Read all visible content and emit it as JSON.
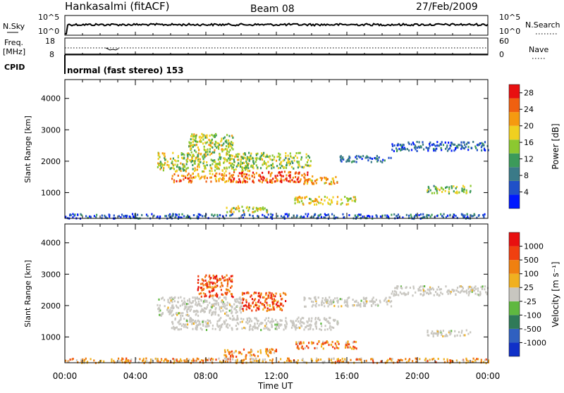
{
  "header": {
    "station": "Hankasalmi (fitACF)",
    "beam": "Beam 08",
    "date": "27/Feb/2009"
  },
  "strip": {
    "nsky_label": "N.Sky",
    "nsky_ticks": [
      "10^5",
      "10^0"
    ],
    "nsearch_ticks": [
      "10^5",
      "10^0"
    ],
    "nsearch_label": "N.Search",
    "freq_label": [
      "Freq.",
      "[MHz]"
    ],
    "freq_ticks": [
      "18",
      "8"
    ],
    "nave_ticks": [
      "60",
      "0"
    ],
    "nave_label": "Nave",
    "cpid_label": "CPID",
    "cpid_text": "normal (fast stereo) 153"
  },
  "time_axis": {
    "title": "Time UT",
    "ticks": [
      "00:00",
      "04:00",
      "08:00",
      "12:00",
      "16:00",
      "20:00",
      "00:00"
    ]
  },
  "colors": {
    "power": [
      "#0018ff",
      "#2050c8",
      "#3a7a88",
      "#3c9a5a",
      "#8cc830",
      "#f0d020",
      "#f59a10",
      "#f06010",
      "#e81010"
    ],
    "velocity": [
      "#1030c8",
      "#3060c0",
      "#2f7a58",
      "#5fb840",
      "#c8c6c0",
      "#f0b020",
      "#f08010",
      "#f04010",
      "#e81010"
    ]
  },
  "chart_data": [
    {
      "type": "heatmap",
      "panel": "power",
      "ylabel": "Slant Range [km]",
      "y_ticks": [
        "1000",
        "2000",
        "3000",
        "4000"
      ],
      "ylim": [
        180,
        4600
      ],
      "xlim_hours": [
        0,
        24
      ],
      "colorbar": {
        "label": "Power [dB]",
        "ticks": [
          "4",
          "8",
          "12",
          "16",
          "20",
          "24",
          "28"
        ],
        "range": [
          0,
          30
        ]
      },
      "regions": [
        {
          "t0": 5.2,
          "t1": 10.5,
          "r0": 1700,
          "r1": 2300,
          "level": 0.55
        },
        {
          "t0": 6.0,
          "t1": 9.5,
          "r0": 1350,
          "r1": 1650,
          "level": 0.75
        },
        {
          "t0": 9.5,
          "t1": 13.8,
          "r0": 1350,
          "r1": 1700,
          "level": 0.85
        },
        {
          "t0": 13.5,
          "t1": 15.5,
          "r0": 1300,
          "r1": 1550,
          "level": 0.7
        },
        {
          "t0": 7.0,
          "t1": 9.5,
          "r0": 2300,
          "r1": 2900,
          "level": 0.55
        },
        {
          "t0": 10.0,
          "t1": 14.0,
          "r0": 1800,
          "r1": 2300,
          "level": 0.5
        },
        {
          "t0": 15.5,
          "t1": 18.5,
          "r0": 2000,
          "r1": 2200,
          "level": 0.25
        },
        {
          "t0": 18.5,
          "t1": 24.0,
          "r0": 2350,
          "r1": 2650,
          "level": 0.2
        },
        {
          "t0": 20.5,
          "t1": 23.0,
          "r0": 1000,
          "r1": 1250,
          "level": 0.5
        },
        {
          "t0": 13.0,
          "t1": 16.5,
          "r0": 650,
          "r1": 900,
          "level": 0.6
        },
        {
          "t0": 9.0,
          "t1": 11.5,
          "r0": 400,
          "r1": 600,
          "level": 0.55
        },
        {
          "t0": 0.0,
          "t1": 24.0,
          "r0": 200,
          "r1": 350,
          "level": 0.2
        }
      ]
    },
    {
      "type": "heatmap",
      "panel": "velocity",
      "ylabel": "Slant Range [km]",
      "y_ticks": [
        "1000",
        "2000",
        "3000",
        "4000"
      ],
      "ylim": [
        180,
        4600
      ],
      "xlim_hours": [
        0,
        24
      ],
      "colorbar": {
        "label": "Velocity [m s⁻¹]",
        "ticks": [
          "1000",
          "500",
          "100",
          "25",
          "-25",
          "-100",
          "-500",
          "-1000"
        ]
      },
      "regions": [
        {
          "t0": 5.2,
          "t1": 10.0,
          "r0": 1700,
          "r1": 2300,
          "level": 0.5
        },
        {
          "t0": 6.0,
          "t1": 15.5,
          "r0": 1250,
          "r1": 1650,
          "level": 0.5
        },
        {
          "t0": 7.5,
          "t1": 9.5,
          "r0": 2300,
          "r1": 3000,
          "level": 0.8
        },
        {
          "t0": 10.0,
          "t1": 12.5,
          "r0": 1850,
          "r1": 2450,
          "level": 0.8
        },
        {
          "t0": 13.5,
          "t1": 18.5,
          "r0": 2000,
          "r1": 2300,
          "level": 0.5
        },
        {
          "t0": 18.5,
          "t1": 24.0,
          "r0": 2350,
          "r1": 2650,
          "level": 0.5
        },
        {
          "t0": 20.5,
          "t1": 23.0,
          "r0": 1050,
          "r1": 1250,
          "level": 0.5
        },
        {
          "t0": 13.0,
          "t1": 16.5,
          "r0": 650,
          "r1": 900,
          "level": 0.7
        },
        {
          "t0": 9.0,
          "t1": 12.0,
          "r0": 400,
          "r1": 650,
          "level": 0.7
        },
        {
          "t0": 0.0,
          "t1": 24.0,
          "r0": 200,
          "r1": 350,
          "level": 0.65
        }
      ]
    }
  ]
}
